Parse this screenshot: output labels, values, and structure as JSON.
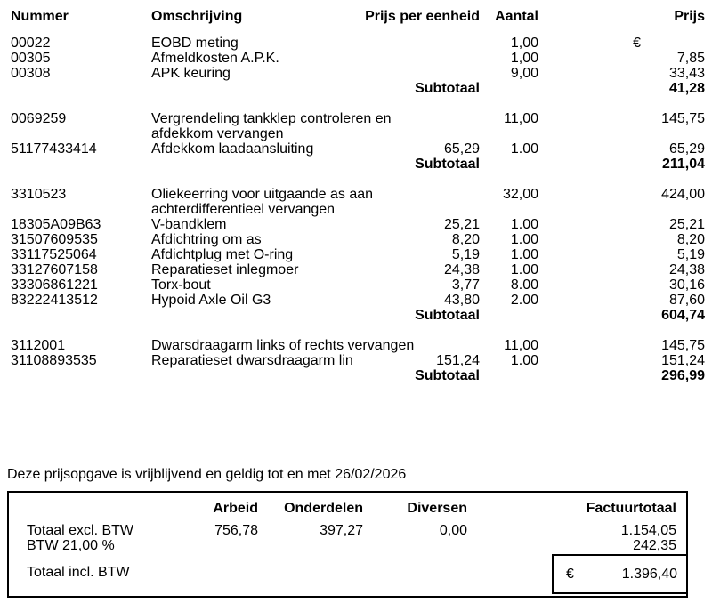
{
  "table": {
    "headers": {
      "nummer": "Nummer",
      "omschrijving": "Omschrijving",
      "prijs_eenheid": "Prijs per eenheid",
      "aantal": "Aantal",
      "prijs": "Prijs"
    },
    "sections": [
      {
        "rows": [
          {
            "nummer": "00022",
            "omschrijving": [
              "EOBD meting"
            ],
            "aantal": "1,00",
            "currency_marker": "€"
          },
          {
            "nummer": "00305",
            "omschrijving": [
              "Afmeldkosten A.P.K."
            ],
            "aantal": "1,00",
            "prijs": "7,85"
          },
          {
            "nummer": "00308",
            "omschrijving": [
              "APK keuring"
            ],
            "aantal": "9,00",
            "prijs": "33,43"
          }
        ],
        "subtotal_label": "Subtotaal",
        "subtotal": "41,28"
      },
      {
        "rows": [
          {
            "nummer": "0069259",
            "omschrijving": [
              "Vergrendeling tankklep controleren en",
              "afdekkom vervangen"
            ],
            "aantal": "11,00",
            "prijs": "145,75"
          },
          {
            "nummer": "51177433414",
            "omschrijving": [
              "Afdekkom laadaansluiting"
            ],
            "prijs_eenheid": "65,29",
            "aantal": "1.00",
            "prijs": "65,29"
          }
        ],
        "subtotal_label": "Subtotaal",
        "subtotal": "211,04"
      },
      {
        "rows": [
          {
            "nummer": "3310523",
            "omschrijving": [
              "Oliekeerring voor uitgaande as aan",
              "achterdifferentieel vervangen"
            ],
            "aantal": "32,00",
            "prijs": "424,00"
          },
          {
            "nummer": "18305A09B63",
            "omschrijving": [
              "V-bandklem"
            ],
            "prijs_eenheid": "25,21",
            "aantal": "1.00",
            "prijs": "25,21"
          },
          {
            "nummer": "31507609535",
            "omschrijving": [
              "Afdichtring om as"
            ],
            "prijs_eenheid": "8,20",
            "aantal": "1.00",
            "prijs": "8,20"
          },
          {
            "nummer": "33117525064",
            "omschrijving": [
              "Afdichtplug met O-ring"
            ],
            "prijs_eenheid": "5,19",
            "aantal": "1.00",
            "prijs": "5,19"
          },
          {
            "nummer": "33127607158",
            "omschrijving": [
              "Reparatieset inlegmoer"
            ],
            "prijs_eenheid": "24,38",
            "aantal": "1.00",
            "prijs": "24,38"
          },
          {
            "nummer": "33306861221",
            "omschrijving": [
              "Torx-bout"
            ],
            "prijs_eenheid": "3,77",
            "aantal": "8.00",
            "prijs": "30,16"
          },
          {
            "nummer": "83222413512",
            "omschrijving": [
              "Hypoid Axle Oil G3"
            ],
            "prijs_eenheid": "43,80",
            "aantal": "2.00",
            "prijs": "87,60"
          }
        ],
        "subtotal_label": "Subtotaal",
        "subtotal": "604,74"
      },
      {
        "rows": [
          {
            "nummer": "3112001",
            "omschrijving": [
              "Dwarsdraagarm links of rechts vervangen"
            ],
            "aantal": "11,00",
            "prijs": "145,75"
          },
          {
            "nummer": "31108893535",
            "omschrijving": [
              "Reparatieset dwarsdraagarm lin"
            ],
            "prijs_eenheid": "151,24",
            "aantal": "1.00",
            "prijs": "151,24"
          }
        ],
        "subtotal_label": "Subtotaal",
        "subtotal": "296,99"
      }
    ]
  },
  "note": "Deze prijsopgave is vrijblijvend en geldig tot en met 26/02/2026",
  "totals": {
    "headers": [
      "Arbeid",
      "Onderdelen",
      "Diversen",
      "Factuurtotaal"
    ],
    "rows": [
      {
        "label": "Totaal excl. BTW",
        "arbeid": "756,78",
        "onderdelen": "397,27",
        "diversen": "0,00",
        "factuurtotaal": "1.154,05"
      },
      {
        "label": "BTW 21,00 %",
        "factuurtotaal": "242,35"
      }
    ],
    "total_incl": {
      "label": "Totaal incl. BTW",
      "currency": "€",
      "value": "1.396,40"
    }
  }
}
